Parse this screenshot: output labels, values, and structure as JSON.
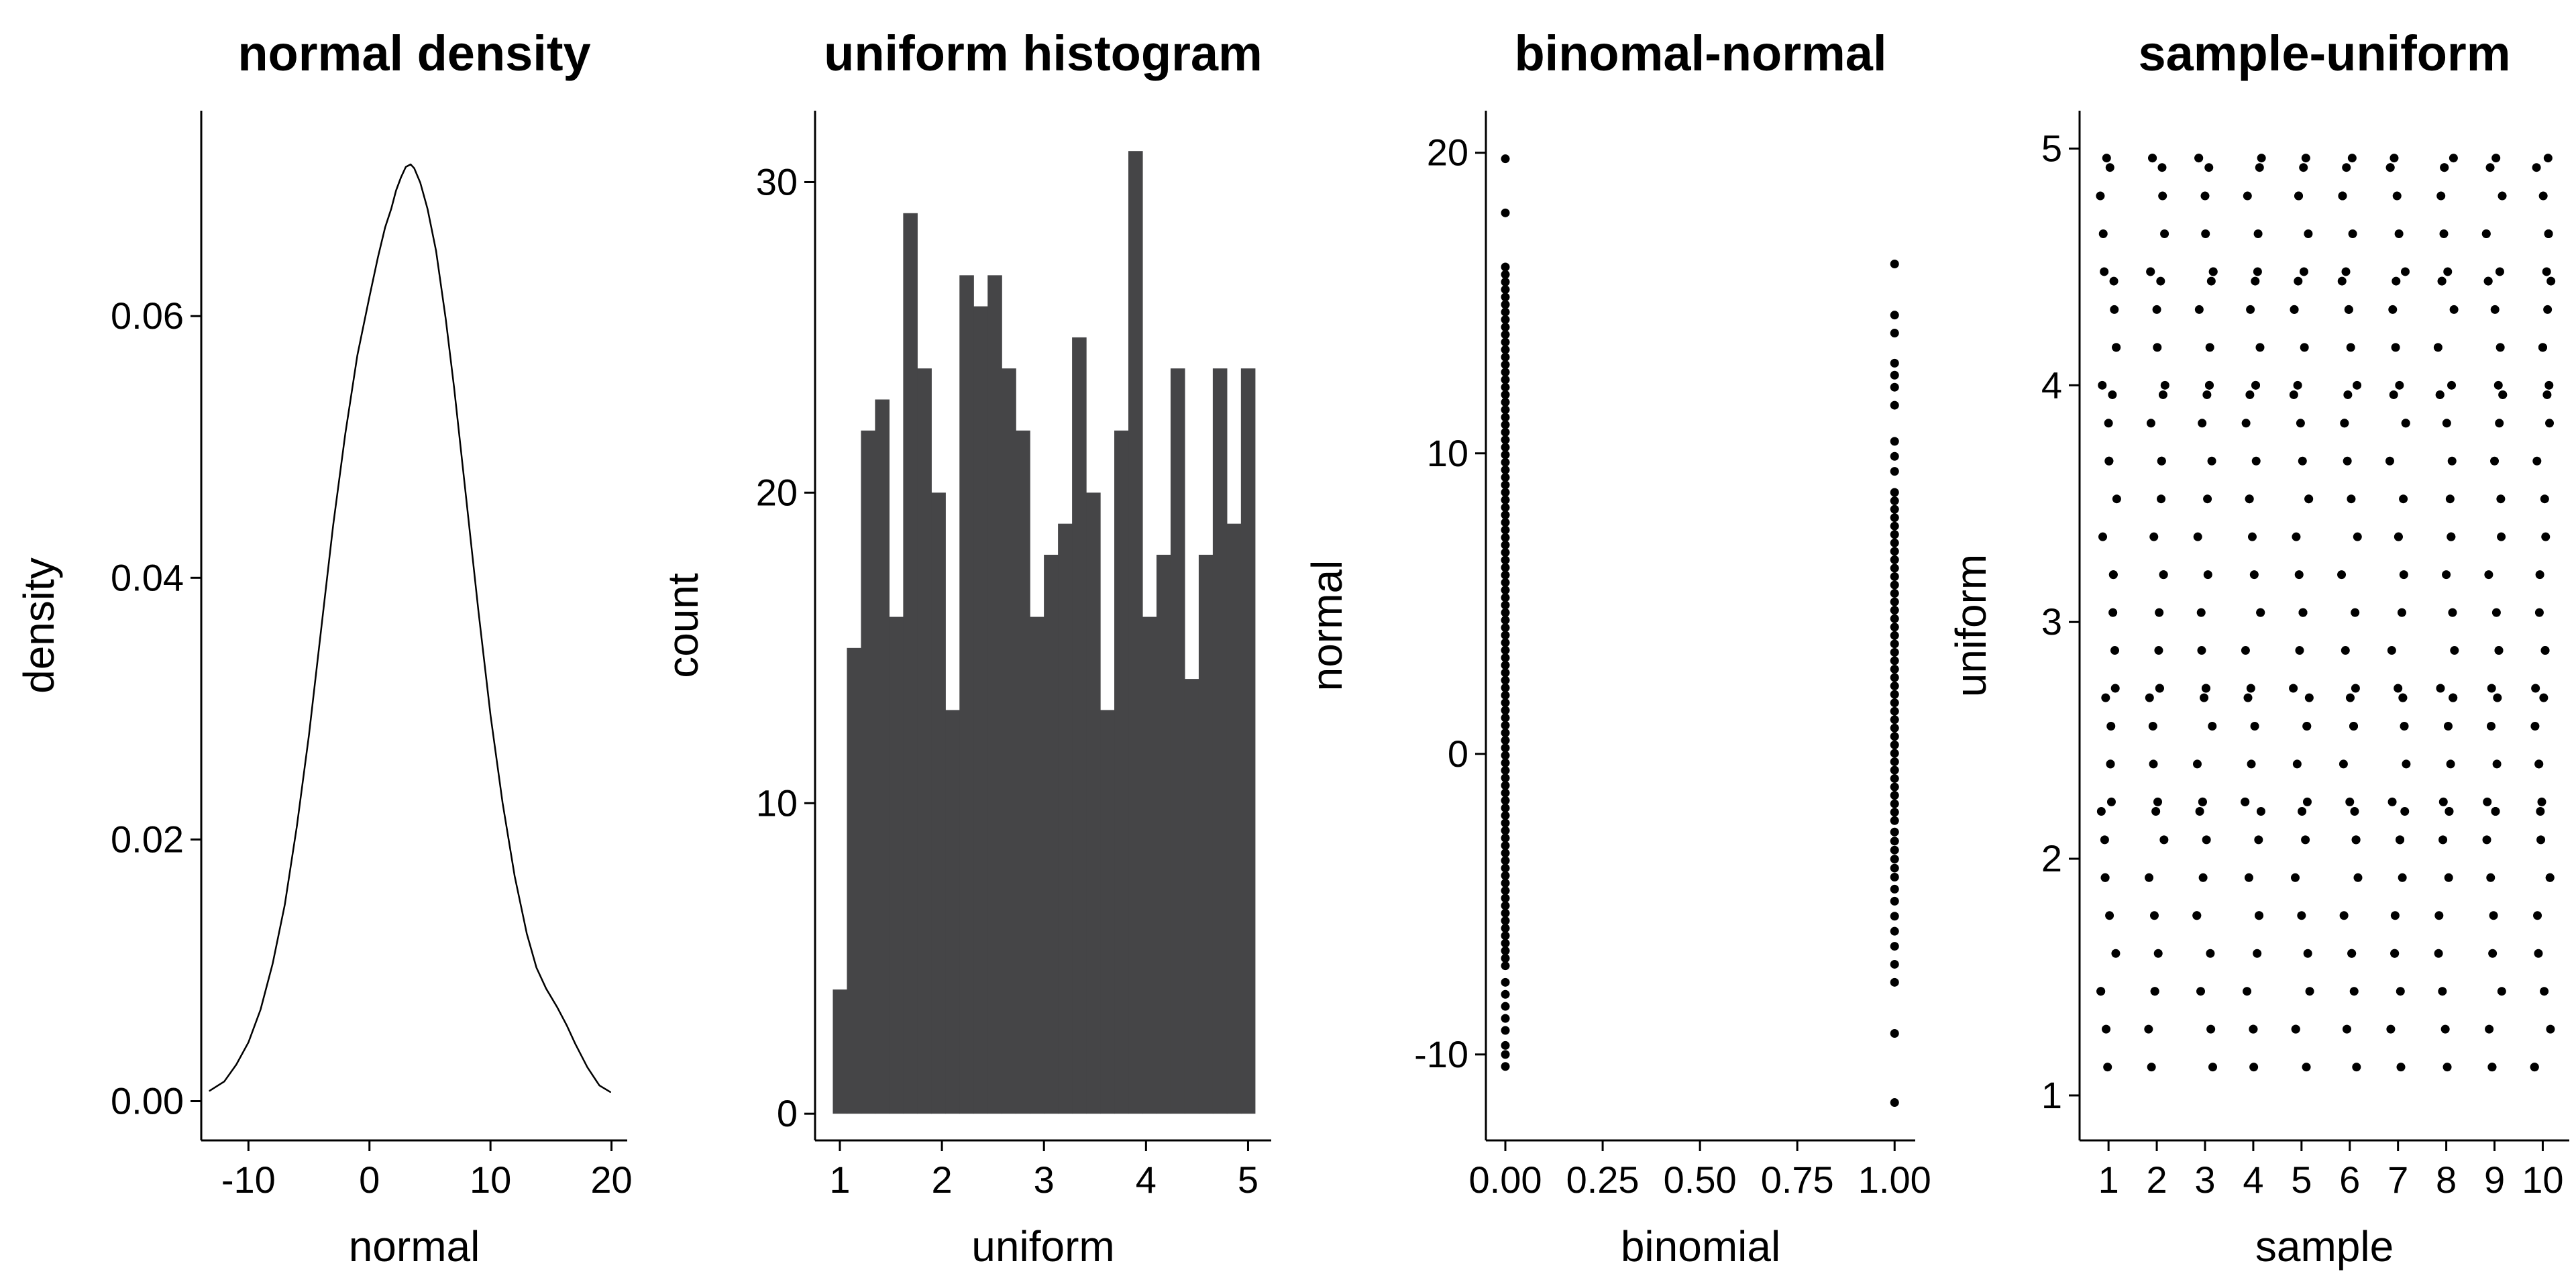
{
  "figure": {
    "background": "#ffffff",
    "text_color": "#000000",
    "axis_color": "#000000",
    "bar_color": "#454547",
    "point_color": "#000000",
    "line_color": "#000000"
  },
  "chart_data": [
    {
      "type": "line",
      "title": "normal density",
      "xlabel": "normal",
      "ylabel": "density",
      "xlim": [
        -13.9,
        21.3
      ],
      "ylim": [
        -0.003,
        0.0757
      ],
      "xtick_vals": [
        -10,
        0,
        10,
        20
      ],
      "xtick_labels": [
        "-10",
        "0",
        "10",
        "20"
      ],
      "ytick_vals": [
        0.0,
        0.02,
        0.04,
        0.06
      ],
      "ytick_labels": [
        "0.00",
        "0.02",
        "0.04",
        "0.06"
      ],
      "line_points": [
        [
          -13.2,
          0.0008
        ],
        [
          -12,
          0.0015
        ],
        [
          -11,
          0.0028
        ],
        [
          -10,
          0.0045
        ],
        [
          -9,
          0.007
        ],
        [
          -8,
          0.0105
        ],
        [
          -7,
          0.015
        ],
        [
          -6,
          0.021
        ],
        [
          -5,
          0.028
        ],
        [
          -4,
          0.036
        ],
        [
          -3,
          0.044
        ],
        [
          -2,
          0.051
        ],
        [
          -1,
          0.057
        ],
        [
          0,
          0.0615
        ],
        [
          0.7,
          0.0645
        ],
        [
          1.3,
          0.0668
        ],
        [
          1.8,
          0.0682
        ],
        [
          2.2,
          0.0696
        ],
        [
          2.6,
          0.0706
        ],
        [
          3.0,
          0.0714
        ],
        [
          3.4,
          0.0716
        ],
        [
          3.7,
          0.0713
        ],
        [
          4.2,
          0.0702
        ],
        [
          4.8,
          0.0682
        ],
        [
          5.5,
          0.065
        ],
        [
          6.3,
          0.0598
        ],
        [
          7,
          0.0545
        ],
        [
          8,
          0.046
        ],
        [
          9,
          0.0375
        ],
        [
          10,
          0.0295
        ],
        [
          11,
          0.0228
        ],
        [
          12,
          0.0172
        ],
        [
          13,
          0.0128
        ],
        [
          13.8,
          0.0102
        ],
        [
          14.6,
          0.0086
        ],
        [
          15.5,
          0.0072
        ],
        [
          16.3,
          0.0058
        ],
        [
          17,
          0.0044
        ],
        [
          18,
          0.0026
        ],
        [
          19,
          0.0012
        ],
        [
          19.9,
          0.0007
        ]
      ]
    },
    {
      "type": "bar",
      "title": "uniform histogram",
      "xlabel": "uniform",
      "ylabel": "count",
      "xlim": [
        0.757,
        5.227
      ],
      "ylim": [
        -0.86,
        32.3
      ],
      "xtick_vals": [
        1,
        2,
        3,
        4,
        5
      ],
      "xtick_labels": [
        "1",
        "2",
        "3",
        "4",
        "5"
      ],
      "ytick_vals": [
        0,
        10,
        20,
        30
      ],
      "ytick_labels": [
        "0",
        "10",
        "20",
        "30"
      ],
      "bin_start": 0.931,
      "bin_width": 0.1379,
      "counts": [
        4,
        15,
        22,
        23,
        16,
        29,
        24,
        20,
        13,
        27,
        26,
        27,
        24,
        22,
        16,
        18,
        19,
        25,
        20,
        13,
        22,
        31,
        16,
        18,
        24,
        14,
        18,
        24,
        19,
        24
      ]
    },
    {
      "type": "scatter",
      "title": "binomal-normal",
      "xlabel": "binomial",
      "ylabel": "normal",
      "xlim": [
        -0.05,
        1.053
      ],
      "ylim": [
        -12.86,
        21.4
      ],
      "xtick_vals": [
        0.0,
        0.25,
        0.5,
        0.75,
        1.0
      ],
      "xtick_labels": [
        "0.00",
        "0.25",
        "0.50",
        "0.75",
        "1.00"
      ],
      "ytick_vals": [
        -10,
        0,
        10,
        20
      ],
      "ytick_labels": [
        "-10",
        "0",
        "10",
        "20"
      ],
      "point_radius": 6.5,
      "groups": [
        {
          "x": 0,
          "outliers_top": [
            19.8,
            18.0
          ],
          "dense": {
            "from": 16.2,
            "to": -7.2,
            "step": 0.25
          },
          "tail": [
            -7.6,
            -8.0,
            -8.4,
            -8.8,
            -9.2,
            -9.7,
            -10.0,
            -10.4
          ]
        },
        {
          "x": 1,
          "outliers_top": [
            16.3,
            14.6,
            14.0,
            13.0,
            12.6,
            12.2,
            11.6,
            10.4,
            9.9,
            9.4
          ],
          "dense": {
            "from": 8.7,
            "to": -2.3,
            "step": 0.28
          },
          "tail": [
            -2.6,
            -2.9,
            -3.2,
            -3.5,
            -3.8,
            -4.1,
            -4.5,
            -4.9,
            -5.4,
            -5.9,
            -6.4,
            -7.0,
            -7.6,
            -9.3,
            -11.6
          ]
        }
      ]
    },
    {
      "type": "jitter",
      "title": "sample-uniform",
      "xlabel": "sample",
      "ylabel": "uniform",
      "xlim": [
        0.4,
        10.55
      ],
      "ylim": [
        0.81,
        5.16
      ],
      "xtick_vals": [
        1,
        2,
        3,
        4,
        5,
        6,
        7,
        8,
        9,
        10
      ],
      "xtick_labels": [
        "1",
        "2",
        "3",
        "4",
        "5",
        "6",
        "7",
        "8",
        "9",
        "10"
      ],
      "ytick_vals": [
        1,
        2,
        3,
        4,
        5
      ],
      "ytick_labels": [
        "1",
        "2",
        "3",
        "4",
        "5"
      ],
      "point_radius": 6.5,
      "columns": [
        1,
        2,
        3,
        4,
        5,
        6,
        7,
        8,
        9,
        10
      ],
      "points_per_column": 36,
      "y_values": [
        1.12,
        2.88,
        4.64,
        2.4,
        4.16,
        1.92,
        3.68,
        1.44,
        3.2,
        4.96,
        2.72,
        4.48,
        2.24,
        4.0,
        1.76,
        3.52,
        1.28,
        3.04,
        4.8,
        2.56,
        4.32,
        2.08,
        3.84,
        1.6,
        3.36,
        4.92,
        2.68,
        4.44,
        2.2,
        3.96
      ],
      "x_offsets": [
        -0.15,
        0.08,
        -0.02,
        0.13,
        -0.11,
        0.04,
        0.16,
        -0.07,
        0.01,
        -0.16,
        0.1,
        -0.04,
        0.14,
        -0.09,
        0.06,
        -0.13,
        0.02,
        0.17,
        -0.05,
        0.09,
        -0.17,
        0.05,
        0.12,
        -0.08,
        0.0,
        0.15,
        -0.12,
        0.03,
        -0.06,
        0.11
      ],
      "y_shift_per_col": 3,
      "x_shift_per_col": 5
    }
  ]
}
